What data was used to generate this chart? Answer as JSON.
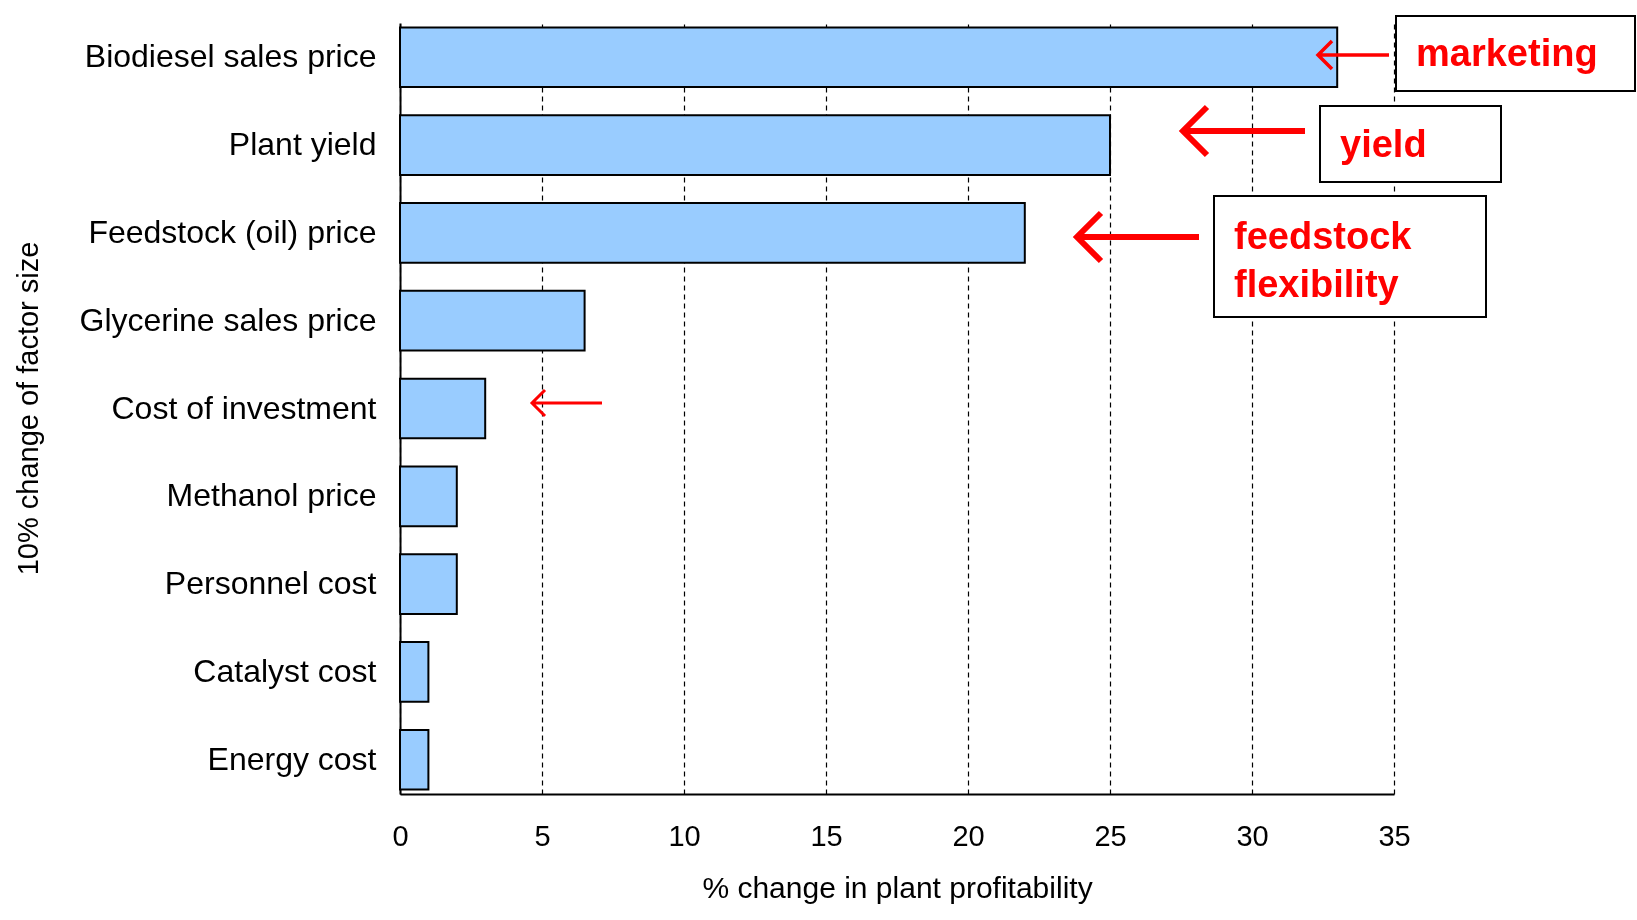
{
  "chart_data": {
    "type": "bar",
    "orientation": "horizontal",
    "xlabel": "% change in plant profitability",
    "ylabel": "10% change of factor size",
    "categories": [
      "Biodiesel sales price",
      "Plant yield",
      "Feedstock (oil) price",
      "Glycerine sales price",
      "Cost of investment",
      "Methanol price",
      "Personnel cost",
      "Catalyst cost",
      "Energy cost"
    ],
    "values": [
      33,
      25,
      22,
      6.5,
      3,
      2,
      2,
      1,
      1
    ],
    "color": "#99ccff",
    "xlim": [
      0,
      35
    ],
    "xticks": [
      0,
      5,
      10,
      15,
      20,
      25,
      30,
      35
    ],
    "grid": "x",
    "annotations": [
      "marketing",
      "yield",
      "feedstock flexibility"
    ]
  }
}
